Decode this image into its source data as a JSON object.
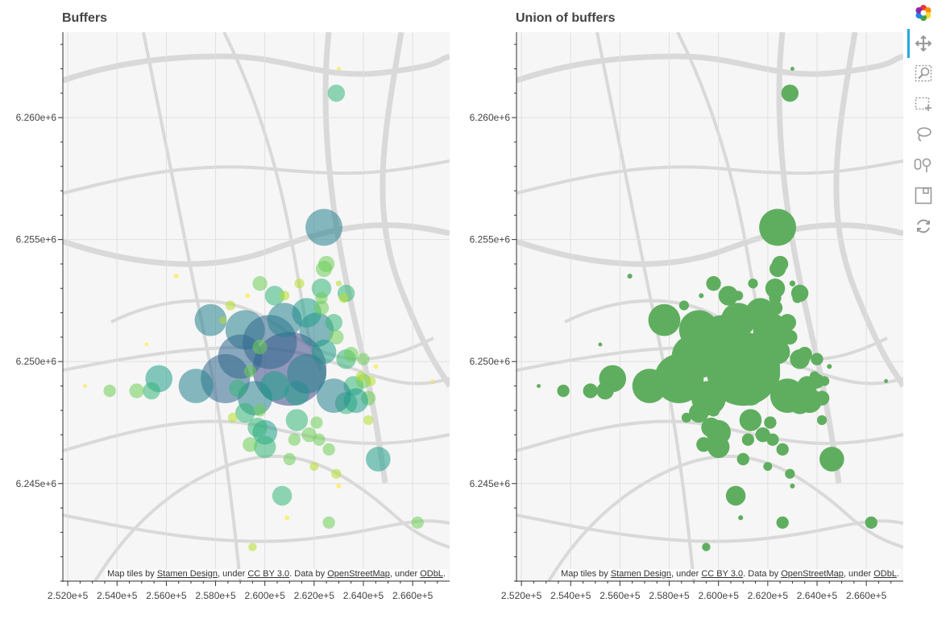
{
  "plots": [
    {
      "title": "Buffers"
    },
    {
      "title": "Union of buffers"
    }
  ],
  "attribution": {
    "p1": "Map tiles by ",
    "l1": "Stamen Design",
    "p2": ", under ",
    "l2": "CC BY 3.0",
    "p3": ". Data by ",
    "l3": "OpenStreetMap",
    "p4": ", under ",
    "l4": "ODbL",
    "p5": "."
  },
  "toolbar": {
    "tools": [
      "bokeh-logo-icon",
      "pan-icon",
      "box-zoom-icon",
      "box-select-icon",
      "lasso-select-icon",
      "tap-icon",
      "save-icon",
      "reset-icon"
    ]
  },
  "chart_data": [
    {
      "type": "scatter",
      "title": "Buffers",
      "xlim": [
        251800,
        267500
      ],
      "ylim": [
        6241000,
        6263500
      ],
      "x_ticks": [
        "2.520e+5",
        "2.540e+5",
        "2.560e+5",
        "2.580e+5",
        "2.600e+5",
        "2.620e+5",
        "2.640e+5",
        "2.660e+5"
      ],
      "x_tick_values": [
        252000,
        254000,
        256000,
        258000,
        260000,
        262000,
        264000,
        266000
      ],
      "y_ticks": [
        "6.245e+6",
        "6.250e+6",
        "6.255e+6",
        "6.260e+6"
      ],
      "y_tick_values": [
        6245000,
        6250000,
        6255000,
        6260000
      ],
      "color_scheme": "viridis",
      "points": [
        [
          261000,
          6249700,
          1500
        ],
        [
          262400,
          6255500,
          750
        ],
        [
          262900,
          6261000,
          350
        ],
        [
          260400,
          6252700,
          400
        ],
        [
          262300,
          6253000,
          400
        ],
        [
          262400,
          6253800,
          330
        ],
        [
          262500,
          6254000,
          330
        ],
        [
          259800,
          6253200,
          300
        ],
        [
          257800,
          6251700,
          650
        ],
        [
          259200,
          6251300,
          800
        ],
        [
          259000,
          6250200,
          900
        ],
        [
          258400,
          6249300,
          1000
        ],
        [
          257200,
          6249000,
          700
        ],
        [
          255700,
          6249300,
          550
        ],
        [
          255400,
          6248800,
          350
        ],
        [
          254800,
          6248800,
          300
        ],
        [
          253700,
          6248800,
          250
        ],
        [
          263600,
          6249000,
          400
        ],
        [
          264000,
          6249200,
          300
        ],
        [
          263300,
          6248300,
          450
        ],
        [
          262800,
          6248600,
          700
        ],
        [
          264200,
          6248500,
          300
        ],
        [
          260200,
          6250800,
          1100
        ],
        [
          262100,
          6251300,
          700
        ],
        [
          261700,
          6252000,
          600
        ],
        [
          260800,
          6251700,
          700
        ],
        [
          259600,
          6248500,
          700
        ],
        [
          259200,
          6247900,
          400
        ],
        [
          258900,
          6248900,
          350
        ],
        [
          260000,
          6247100,
          500
        ],
        [
          260000,
          6246500,
          450
        ],
        [
          259700,
          6247300,
          400
        ],
        [
          261300,
          6247600,
          450
        ],
        [
          261800,
          6247000,
          300
        ],
        [
          262200,
          6246800,
          250
        ],
        [
          261200,
          6246800,
          250
        ],
        [
          262100,
          6247500,
          250
        ],
        [
          264600,
          6246000,
          500
        ],
        [
          260700,
          6244500,
          400
        ],
        [
          262600,
          6243400,
          250
        ],
        [
          259400,
          6246600,
          300
        ],
        [
          262600,
          6246400,
          250
        ],
        [
          262900,
          6245400,
          200
        ],
        [
          261000,
          6246000,
          250
        ],
        [
          259500,
          6242400,
          170
        ],
        [
          260900,
          6243600,
          100
        ],
        [
          263000,
          6244900,
          100
        ],
        [
          263300,
          6250100,
          400
        ],
        [
          264000,
          6250100,
          250
        ],
        [
          262900,
          6251000,
          300
        ],
        [
          262800,
          6251600,
          350
        ],
        [
          263300,
          6252800,
          350
        ],
        [
          262300,
          6252200,
          300
        ],
        [
          263200,
          6252600,
          200
        ],
        [
          263900,
          6249400,
          200
        ],
        [
          259300,
          6252700,
          100
        ],
        [
          263500,
          6250300,
          300
        ],
        [
          264500,
          6249800,
          100
        ],
        [
          256400,
          6253500,
          100
        ],
        [
          252700,
          6249000,
          80
        ],
        [
          266800,
          6249200,
          80
        ],
        [
          255200,
          6250700,
          80
        ],
        [
          258300,
          6251700,
          150
        ],
        [
          263700,
          6248400,
          500
        ],
        [
          261300,
          6248700,
          500
        ],
        [
          264200,
          6247600,
          200
        ],
        [
          259800,
          6250600,
          300
        ],
        [
          261400,
          6253200,
          200
        ],
        [
          262300,
          6252600,
          250
        ],
        [
          258600,
          6252300,
          200
        ],
        [
          259400,
          6249600,
          250
        ],
        [
          260800,
          6252700,
          200
        ],
        [
          262000,
          6245700,
          180
        ],
        [
          263000,
          6253200,
          120
        ],
        [
          264300,
          6249200,
          200
        ],
        [
          266200,
          6243400,
          250
        ],
        [
          263000,
          6262000,
          80
        ],
        [
          259800,
          6248000,
          250
        ],
        [
          258700,
          6247700,
          200
        ],
        [
          262400,
          6250400,
          500
        ],
        [
          260400,
          6249000,
          600
        ],
        [
          261700,
          6249500,
          800
        ]
      ]
    },
    {
      "type": "scatter",
      "title": "Union of buffers",
      "xlim": [
        251800,
        267500
      ],
      "ylim": [
        6241000,
        6263500
      ],
      "x_ticks": [
        "2.520e+5",
        "2.540e+5",
        "2.560e+5",
        "2.580e+5",
        "2.600e+5",
        "2.620e+5",
        "2.640e+5",
        "2.660e+5"
      ],
      "y_ticks": [
        "6.245e+6",
        "6.250e+6",
        "6.255e+6",
        "6.260e+6"
      ],
      "fill_color": "#5fae5f",
      "note_color": "#5fae5f"
    }
  ]
}
